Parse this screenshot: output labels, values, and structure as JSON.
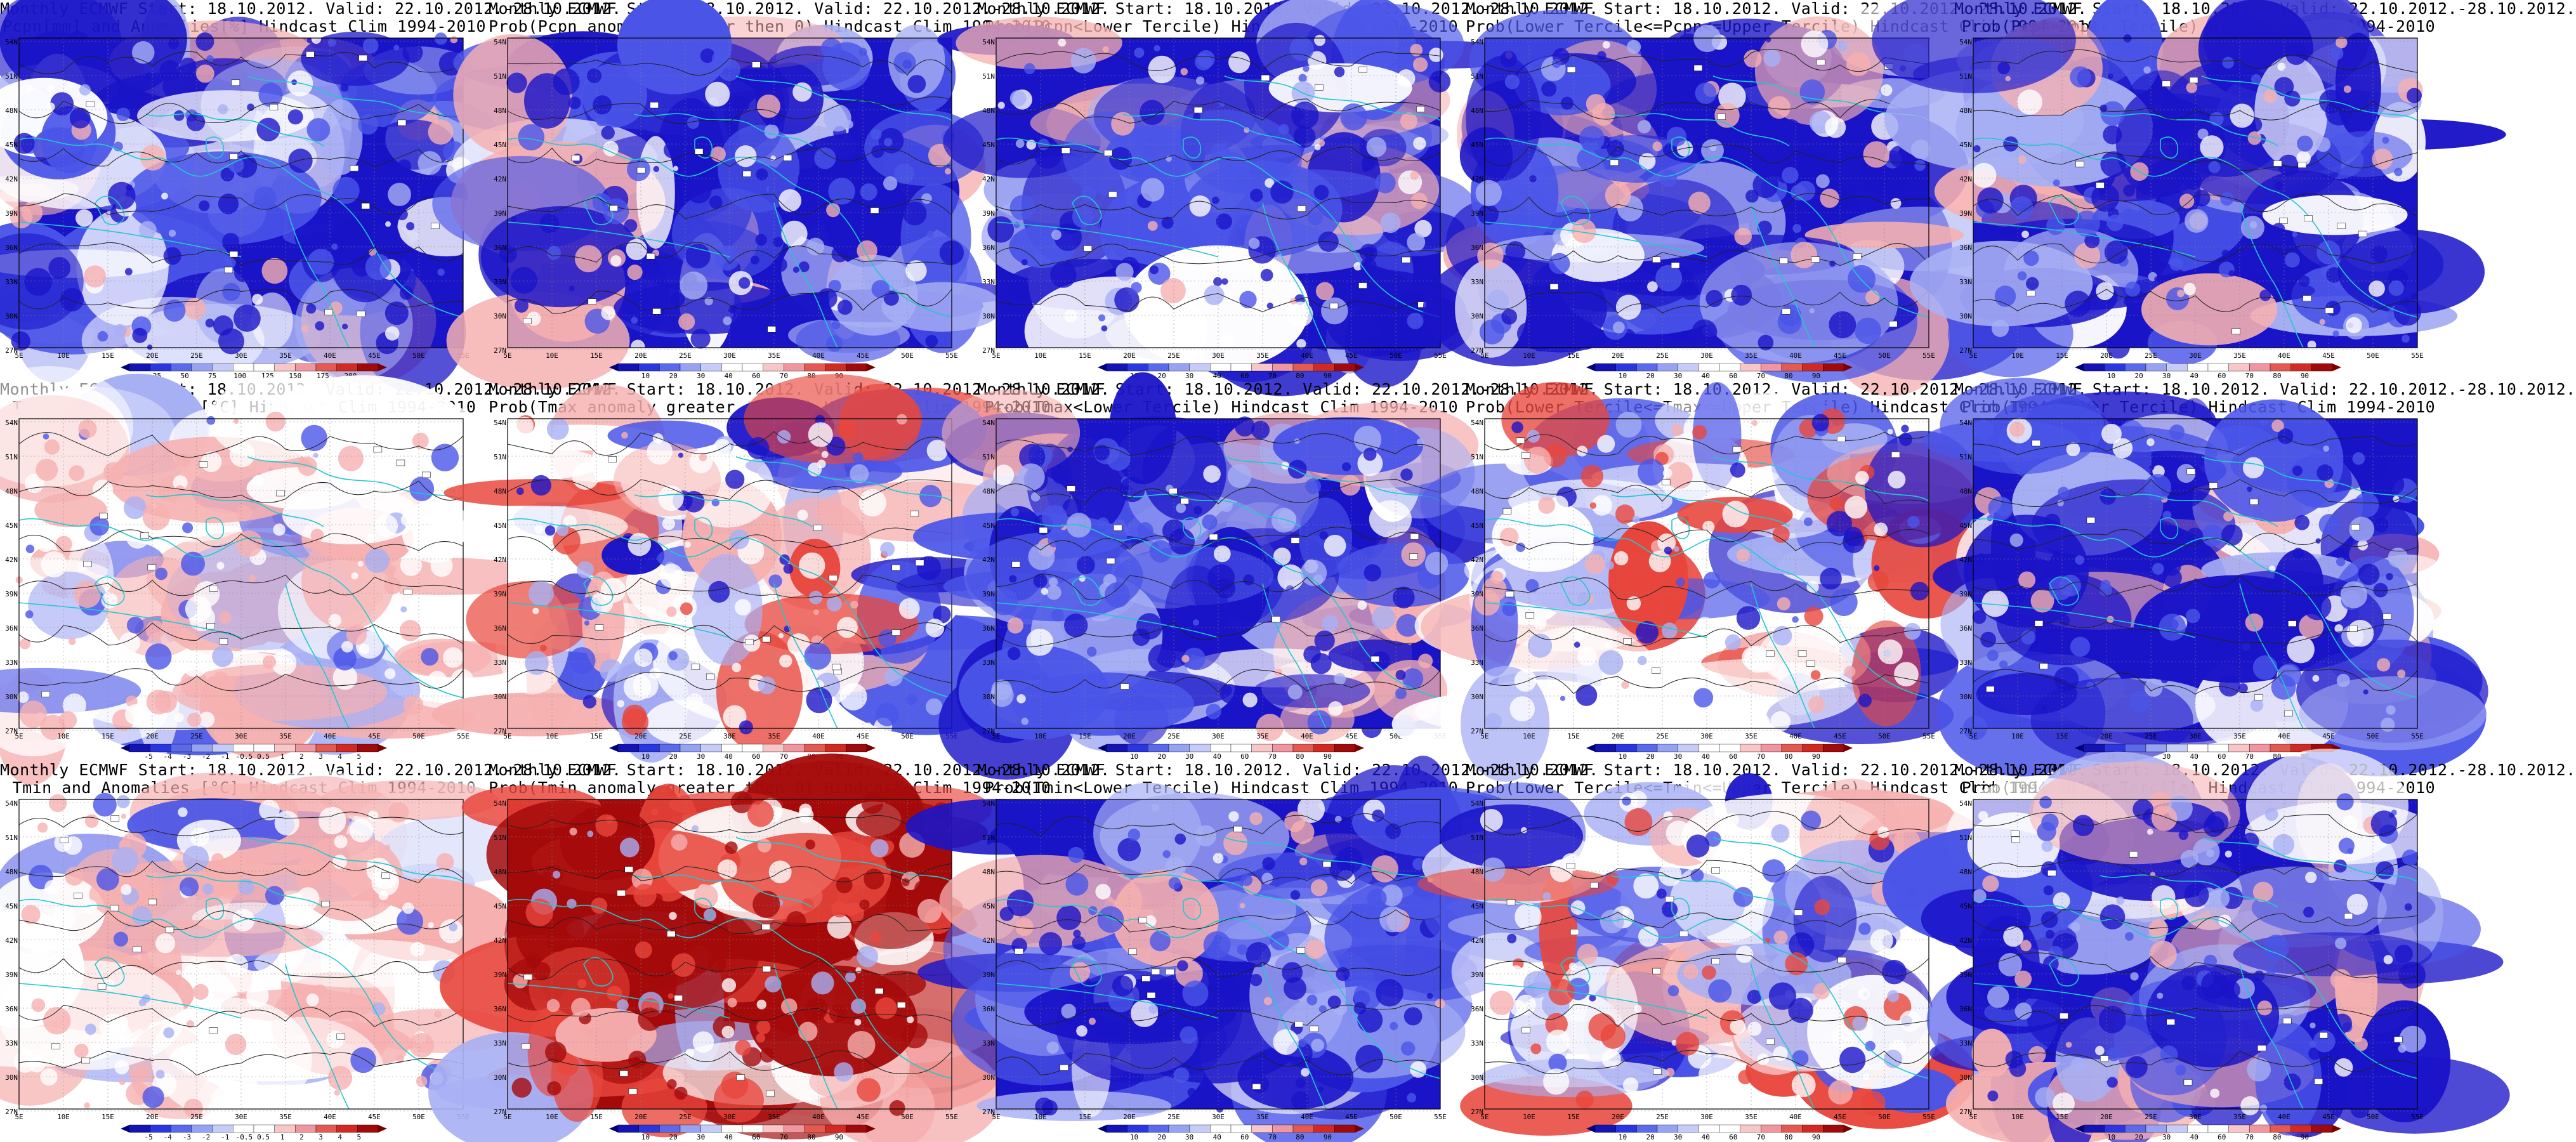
{
  "panels": [
    {
      "id": "p1",
      "line1": "Monthly ECMWF Start: 18.10.2012. Valid: 22.10.2012.-28.10.2012.",
      "line2": "Pcpn[mm] and Anomalies[%] Hindcast Clim 1994-2010",
      "scheme": "bwr",
      "ticks": [
        "25",
        "50",
        "75",
        "100",
        "125",
        "150",
        "175",
        "200"
      ],
      "base": "blue"
    },
    {
      "id": "p2",
      "line1": "Monthly ECMWF Start: 18.10.2012. Valid: 22.10.2012.-28.10.2012.",
      "line2": "Prob(Pcpn anomaly greater then 0) Hindcast Clim 1994-2010",
      "scheme": "bwr",
      "ticks": [
        "10",
        "20",
        "30",
        "40",
        "60",
        "70",
        "80",
        "90"
      ],
      "base": "blue"
    },
    {
      "id": "p3",
      "line1": "Monthly ECMWF Start: 18.10.2012. Valid: 22.10.2012.-28.10.2012.",
      "line2": "Prob(Pcpn<Lower Tercile) Hindcast Clim 1994-2010",
      "scheme": "bwr",
      "ticks": [
        "10",
        "20",
        "30",
        "40",
        "60",
        "70",
        "80",
        "90"
      ],
      "base": "blue"
    },
    {
      "id": "p4",
      "line1": "Monthly ECMWF Start: 18.10.2012. Valid: 22.10.2012.-28.10.2012.",
      "line2": "Prob(Lower Tercile<=Pcpn<=Upper Tercile) Hindcast Clim 1994-2010",
      "scheme": "bwr",
      "ticks": [
        "10",
        "20",
        "30",
        "40",
        "60",
        "70",
        "80",
        "90"
      ],
      "base": "blue"
    },
    {
      "id": "p5",
      "line1": "Monthly ECMWF Start: 18.10.2012. Valid: 22.10.2012.-28.10.2012.",
      "line2": "Prob(Pcpn>Upper Tercile) Hindcast Clim 1994-2010",
      "scheme": "bwr",
      "ticks": [
        "10",
        "20",
        "30",
        "40",
        "60",
        "70",
        "80",
        "90"
      ],
      "base": "blue"
    },
    {
      "id": "p6",
      "line1": "Monthly ECMWF Start: 18.10.2012. Valid: 22.10.2012.-28.10.2012.",
      "line2": "Tmax and Anomalies [°C] Hindcast Clim 1994-2010",
      "scheme": "bwr",
      "ticks": [
        "-5",
        "-4",
        "-3",
        "-2",
        "-1",
        "-0.5",
        "0.5",
        "1",
        "2",
        "3",
        "4",
        "5"
      ],
      "base": "white"
    },
    {
      "id": "p7",
      "line1": "Monthly ECMWF Start: 18.10.2012. Valid: 22.10.2012.-28.10.2012.",
      "line2": "Prob(Tmax anomaly greater then 0) Hindcast Clim 1994-2010",
      "scheme": "bwr",
      "ticks": [
        "10",
        "20",
        "30",
        "40",
        "60",
        "70",
        "80",
        "90"
      ],
      "base": "mixed"
    },
    {
      "id": "p8",
      "line1": "Monthly ECMWF Start: 18.10.2012. Valid: 22.10.2012.-28.10.2012.",
      "line2": "Prob(Tmax<Lower Tercile) Hindcast Clim 1994-2010",
      "scheme": "bwr",
      "ticks": [
        "10",
        "20",
        "30",
        "40",
        "60",
        "70",
        "80",
        "90"
      ],
      "base": "blue"
    },
    {
      "id": "p9",
      "line1": "Monthly ECMWF Start: 18.10.2012. Valid: 22.10.2012.-28.10.2012.",
      "line2": "Prob(Lower Tercile<=Tmax<=Upper Tercile) Hindcast Clim 1994-2010",
      "scheme": "bwr",
      "ticks": [
        "10",
        "20",
        "30",
        "40",
        "60",
        "70",
        "80",
        "90"
      ],
      "base": "mixed"
    },
    {
      "id": "p10",
      "line1": "Monthly ECMWF Start: 18.10.2012. Valid: 22.10.2012.-28.10.2012.",
      "line2": "Prob(Tmax>Upper Tercile) Hindcast Clim 1994-2010",
      "scheme": "bwr",
      "ticks": [
        "10",
        "20",
        "30",
        "40",
        "60",
        "70",
        "80",
        "90"
      ],
      "base": "blue"
    },
    {
      "id": "p11",
      "line1": "Monthly ECMWF Start: 18.10.2012. Valid: 22.10.2012.-28.10.2012.",
      "line2": "Tmin and Anomalies [°C] Hindcast Clim 1994-2010",
      "scheme": "bwr",
      "ticks": [
        "-5",
        "-4",
        "-3",
        "-2",
        "-1",
        "-0.5",
        "0.5",
        "1",
        "2",
        "3",
        "4",
        "5"
      ],
      "base": "white"
    },
    {
      "id": "p12",
      "line1": "Monthly ECMWF Start: 18.10.2012. Valid: 22.10.2012.-28.10.2012.",
      "line2": "Prob(Tmin anomaly greater then 0) Hindcast Clim 1994-2010",
      "scheme": "bwr",
      "ticks": [
        "10",
        "20",
        "30",
        "40",
        "60",
        "70",
        "80",
        "90"
      ],
      "base": "red"
    },
    {
      "id": "p13",
      "line1": "Monthly ECMWF Start: 18.10.2012. Valid: 22.10.2012.-28.10.2012.",
      "line2": "Prob(Tmin<Lower Tercile) Hindcast Clim 1994-2010",
      "scheme": "bwr",
      "ticks": [
        "10",
        "20",
        "30",
        "40",
        "60",
        "70",
        "80",
        "90"
      ],
      "base": "blue"
    },
    {
      "id": "p14",
      "line1": "Monthly ECMWF Start: 18.10.2012. Valid: 22.10.2012.-28.10.2012.",
      "line2": "Prob(Lower Tercile<=Tmin<=Upper Tercile) Hindcast Clim 1994-2010",
      "scheme": "bwr",
      "ticks": [
        "10",
        "20",
        "30",
        "40",
        "60",
        "70",
        "80",
        "90"
      ],
      "base": "mixed"
    },
    {
      "id": "p15",
      "line1": "Monthly ECMWF Start: 18.10.2012. Valid: 22.10.2012.-28.10.2012.",
      "line2": "Prob(Tmin>Upper Tercile) Hindcast Clim 1994-2010",
      "scheme": "bwr",
      "ticks": [
        "10",
        "20",
        "30",
        "40",
        "60",
        "70",
        "80",
        "90"
      ],
      "base": "blue"
    }
  ],
  "axes": {
    "lat_labels": [
      "54N",
      "51N",
      "48N",
      "45N",
      "42N",
      "39N",
      "36N",
      "33N",
      "30N",
      "27N"
    ],
    "lon_labels": [
      "5E",
      "10E",
      "15E",
      "20E",
      "25E",
      "30E",
      "35E",
      "40E",
      "45E",
      "50E",
      "55E"
    ]
  },
  "colors": {
    "dark_blue": "#1a14c8",
    "mid_blue": "#4a55e8",
    "light_blue": "#a8b0f4",
    "white": "#ffffff",
    "light_red": "#f6b0b0",
    "mid_red": "#e8463c",
    "dark_red": "#a50a0a",
    "coast": "#20c8d0",
    "contour": "#202020"
  },
  "colorbar_colors": [
    "#1414b4",
    "#2a36e0",
    "#5a6aea",
    "#96a2f2",
    "#c6ccf8",
    "#ffffff",
    "#ffffff",
    "#f8c6c6",
    "#f096a0",
    "#e45a50",
    "#d22a22",
    "#a00a0a"
  ]
}
